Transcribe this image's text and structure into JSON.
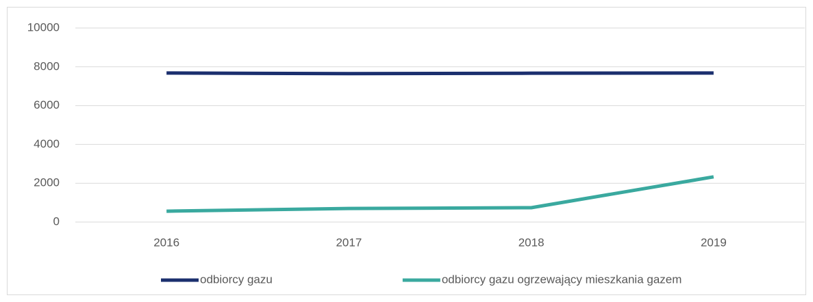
{
  "chart_data": {
    "type": "line",
    "categories": [
      "2016",
      "2017",
      "2018",
      "2019"
    ],
    "series": [
      {
        "name": "odbiorcy gazu",
        "color": "#1b2f6e",
        "values": [
          7680,
          7650,
          7670,
          7680
        ]
      },
      {
        "name": "odbiorcy gazu ogrzewający mieszkania gazem",
        "color": "#3aa99f",
        "values": [
          560,
          700,
          740,
          2330
        ]
      }
    ],
    "ylim": [
      0,
      10000
    ],
    "yticks": [
      0,
      2000,
      4000,
      6000,
      8000,
      10000
    ],
    "grid": true,
    "legend": "bottom"
  }
}
